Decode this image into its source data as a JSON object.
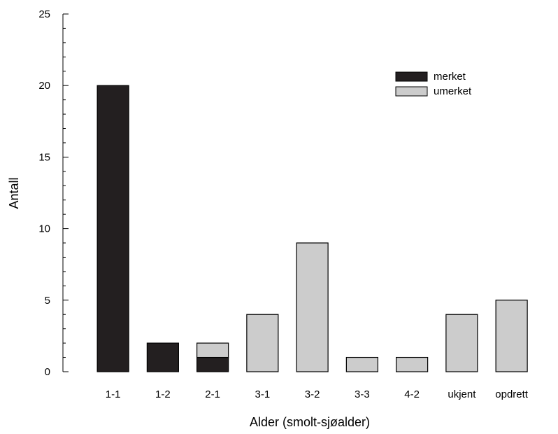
{
  "chart_data": {
    "type": "bar",
    "stacked": true,
    "categories": [
      "1-1",
      "1-2",
      "2-1",
      "3-1",
      "3-2",
      "3-3",
      "4-2",
      "ukjent",
      "opdrett"
    ],
    "series": [
      {
        "name": "merket",
        "color": "#231f20",
        "values": [
          20,
          2,
          1,
          0,
          0,
          0,
          0,
          0,
          0
        ]
      },
      {
        "name": "umerket",
        "color": "#cccccc",
        "values": [
          0,
          0,
          1,
          4,
          9,
          1,
          1,
          4,
          5
        ]
      }
    ],
    "xlabel": "Alder (smolt-sjøalder)",
    "ylabel": "Antall",
    "ylim": [
      0,
      25
    ],
    "yticks": [
      0,
      5,
      10,
      15,
      20,
      25
    ],
    "y_minor_step": 1,
    "legend_position": "top-right",
    "grid": false
  }
}
